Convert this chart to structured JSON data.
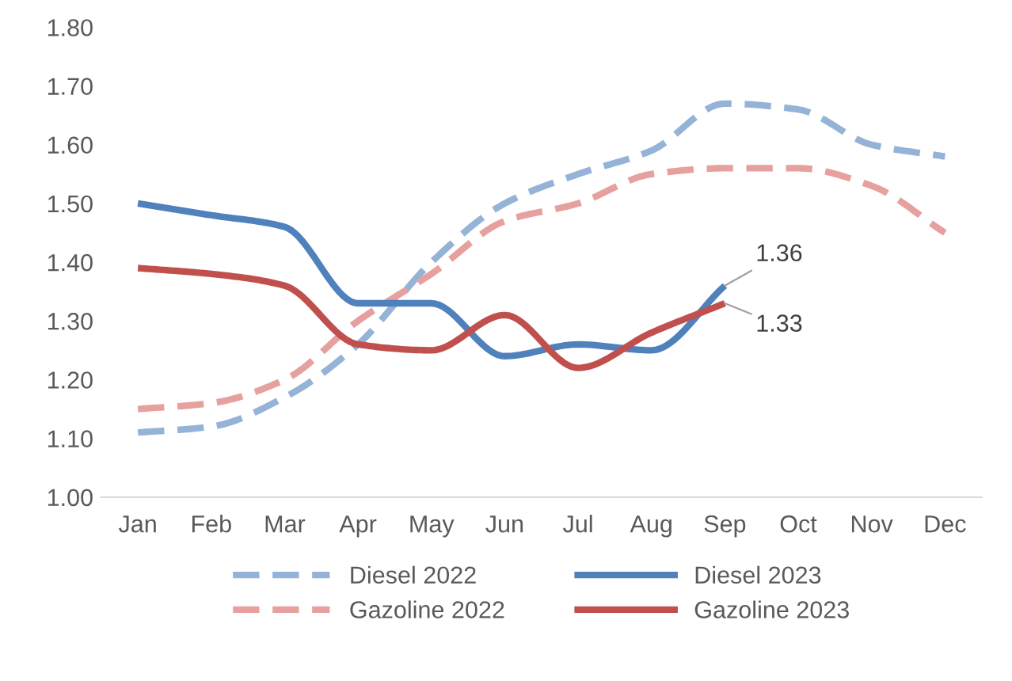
{
  "chart_data": {
    "type": "line",
    "categories": [
      "Jan",
      "Feb",
      "Mar",
      "Apr",
      "May",
      "Jun",
      "Jul",
      "Aug",
      "Sep",
      "Oct",
      "Nov",
      "Dec"
    ],
    "series": [
      {
        "name": "Diesel 2022",
        "color": "#95b3d7",
        "line_style": "dashed",
        "values": [
          1.11,
          1.12,
          1.17,
          1.26,
          1.4,
          1.5,
          1.55,
          1.59,
          1.67,
          1.66,
          1.6,
          1.58
        ]
      },
      {
        "name": "Gazoline 2022",
        "color": "#e6a09e",
        "line_style": "dashed",
        "values": [
          1.15,
          1.16,
          1.2,
          1.3,
          1.38,
          1.47,
          1.5,
          1.55,
          1.56,
          1.56,
          1.53,
          1.45
        ]
      },
      {
        "name": "Diesel 2023",
        "color": "#4f81bd",
        "line_style": "solid",
        "values": [
          1.5,
          1.48,
          1.46,
          1.33,
          1.33,
          1.24,
          1.26,
          1.25,
          1.36,
          null,
          null,
          null
        ],
        "value_labels": [
          null,
          null,
          null,
          null,
          null,
          null,
          null,
          null,
          "1.36",
          null,
          null,
          null
        ]
      },
      {
        "name": "Gazoline 2023",
        "color": "#c0504d",
        "line_style": "solid",
        "values": [
          1.39,
          1.38,
          1.36,
          1.26,
          1.25,
          1.31,
          1.22,
          1.28,
          1.33,
          null,
          null,
          null
        ],
        "value_labels": [
          null,
          null,
          null,
          null,
          null,
          null,
          null,
          null,
          "1.33",
          null,
          null,
          null
        ]
      }
    ],
    "ylim": [
      1.0,
      1.8
    ],
    "yticks": [
      {
        "value": 1.0,
        "label": "1.00"
      },
      {
        "value": 1.1,
        "label": "1.10"
      },
      {
        "value": 1.2,
        "label": "1.20"
      },
      {
        "value": 1.3,
        "label": "1.30"
      },
      {
        "value": 1.4,
        "label": "1.40"
      },
      {
        "value": 1.5,
        "label": "1.50"
      },
      {
        "value": 1.6,
        "label": "1.60"
      },
      {
        "value": 1.7,
        "label": "1.70"
      },
      {
        "value": 1.8,
        "label": "1.80"
      }
    ],
    "grid": false,
    "legend": "bottom",
    "marker": "none"
  }
}
